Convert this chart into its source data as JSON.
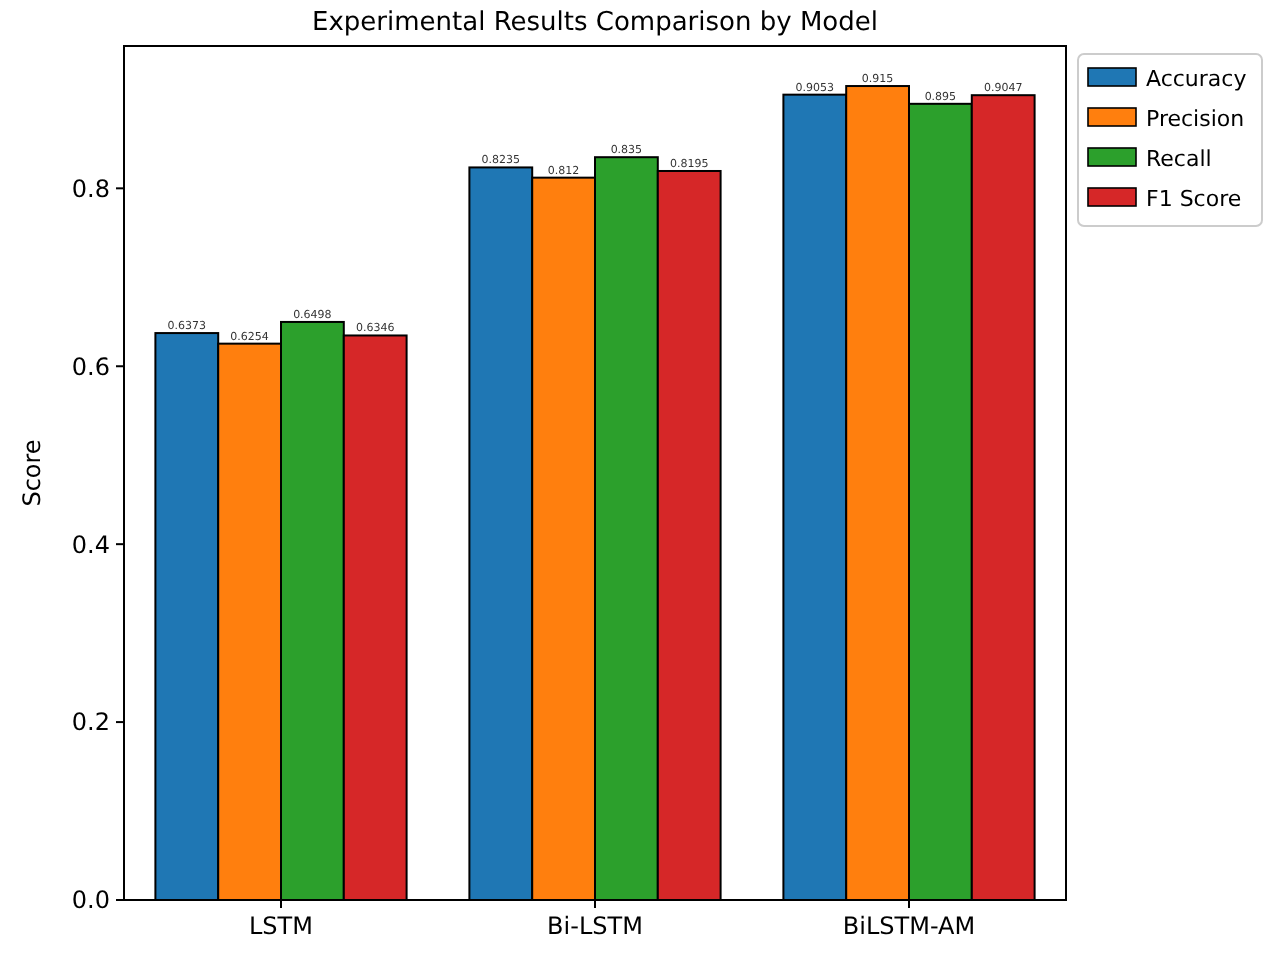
{
  "chart_data": {
    "type": "bar",
    "title": "Experimental Results Comparison by Model",
    "ylabel": "Score",
    "categories": [
      "LSTM",
      "Bi-LSTM",
      "BiLSTM-AM"
    ],
    "series": [
      {
        "name": "Accuracy",
        "color": "#1f77b4",
        "values": [
          0.6373,
          0.8235,
          0.9053
        ]
      },
      {
        "name": "Precision",
        "color": "#ff7f0e",
        "values": [
          0.6254,
          0.812,
          0.915
        ]
      },
      {
        "name": "Recall",
        "color": "#2ca02c",
        "values": [
          0.6498,
          0.835,
          0.895
        ]
      },
      {
        "name": "F1 Score",
        "color": "#d62728",
        "values": [
          0.6346,
          0.8195,
          0.9047
        ]
      }
    ],
    "ylim": [
      0,
      0.96
    ],
    "yticks": [
      {
        "value": 0,
        "label": "0.0"
      },
      {
        "value": 0.2,
        "label": "0.2"
      },
      {
        "value": 0.4,
        "label": "0.4"
      },
      {
        "value": 0.6,
        "label": "0.6"
      },
      {
        "value": 0.8,
        "label": "0.8"
      }
    ],
    "data_labels": true,
    "legend": "top right",
    "grid": false
  }
}
